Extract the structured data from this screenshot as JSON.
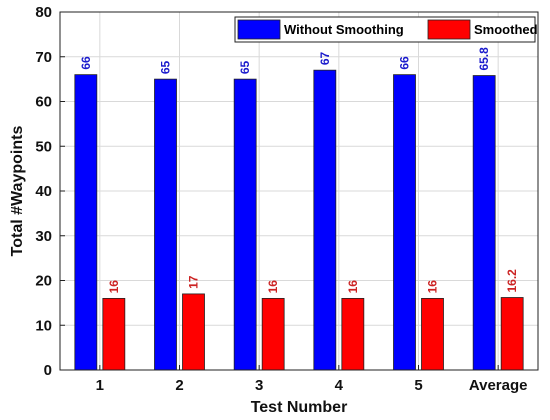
{
  "chart_data": {
    "type": "bar",
    "title": "",
    "xlabel": "Test Number",
    "ylabel": "Total #Waypoints",
    "categories": [
      "1",
      "2",
      "3",
      "4",
      "5",
      "Average"
    ],
    "ylim": [
      0,
      80
    ],
    "yticks": [
      0,
      10,
      20,
      30,
      40,
      50,
      60,
      70,
      80
    ],
    "grid": true,
    "legend_position": "top-right",
    "series": [
      {
        "name": "Without Smoothing",
        "values": [
          66,
          65,
          65,
          67,
          66,
          65.8
        ],
        "labels": [
          "66",
          "65",
          "65",
          "67",
          "66",
          "65.8"
        ],
        "color": "#0000ff",
        "label_color": "#1a1acc"
      },
      {
        "name": "Smoothed",
        "values": [
          16,
          17,
          16,
          16,
          16,
          16.2
        ],
        "labels": [
          "16",
          "17",
          "16",
          "16",
          "16",
          "16.2"
        ],
        "color": "#ff0000",
        "label_color": "#cc2222"
      }
    ]
  }
}
